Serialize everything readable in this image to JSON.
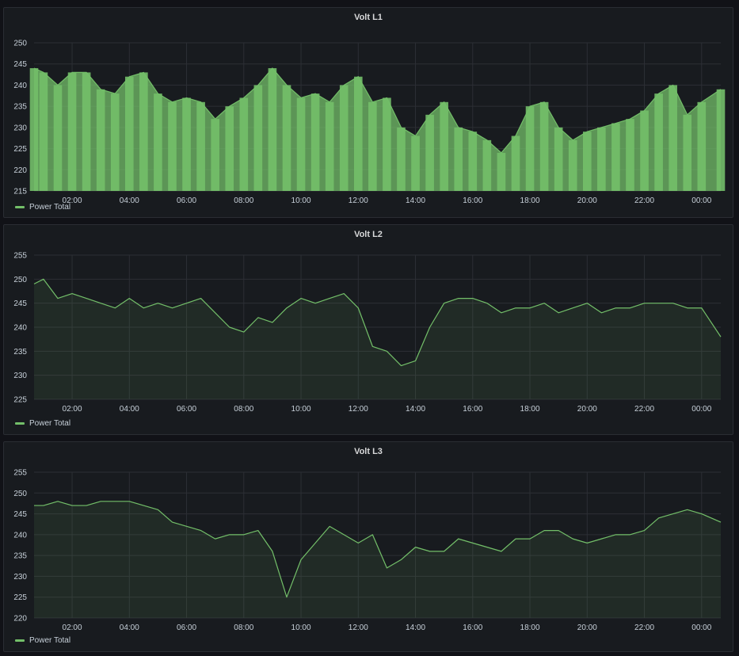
{
  "theme": {
    "series_color": "#73bf69"
  },
  "chart_data": [
    {
      "type": "bar",
      "title": "Volt L1",
      "ylim": [
        215,
        250
      ],
      "yticks": [
        215,
        220,
        225,
        230,
        235,
        240,
        245,
        250
      ],
      "xticks": [
        "02:00",
        "04:00",
        "06:00",
        "08:00",
        "10:00",
        "12:00",
        "14:00",
        "16:00",
        "18:00",
        "20:00",
        "22:00",
        "00:00"
      ],
      "xrange_hours": [
        0.67,
        24.67
      ],
      "grid": true,
      "legend": "bottom-left",
      "series": [
        {
          "name": "Power Total",
          "x": [
            0.67,
            1,
            1.5,
            2,
            2.5,
            3,
            3.5,
            4,
            4.5,
            5,
            5.5,
            6,
            6.5,
            7,
            7.5,
            8,
            8.5,
            9,
            9.5,
            10,
            10.5,
            11,
            11.5,
            12,
            12.5,
            13,
            13.5,
            14,
            14.5,
            15,
            15.5,
            16,
            16.5,
            17,
            17.5,
            18,
            18.5,
            19,
            19.5,
            20,
            20.5,
            21,
            21.5,
            22,
            22.5,
            23,
            23.5,
            24,
            24.67
          ],
          "values": [
            244,
            243,
            240,
            243,
            243,
            239,
            238,
            242,
            243,
            238,
            236,
            237,
            236,
            232,
            235,
            237,
            240,
            244,
            240,
            237,
            238,
            236,
            240,
            242,
            236,
            237,
            230,
            228,
            233,
            236,
            230,
            229,
            227,
            224,
            228,
            235,
            236,
            230,
            227,
            229,
            230,
            231,
            232,
            234,
            238,
            240,
            233,
            236,
            239
          ]
        }
      ]
    },
    {
      "type": "area",
      "title": "Volt L2",
      "ylim": [
        225,
        255
      ],
      "yticks": [
        225,
        230,
        235,
        240,
        245,
        250,
        255
      ],
      "xticks": [
        "02:00",
        "04:00",
        "06:00",
        "08:00",
        "10:00",
        "12:00",
        "14:00",
        "16:00",
        "18:00",
        "20:00",
        "22:00",
        "00:00"
      ],
      "xrange_hours": [
        0.67,
        24.67
      ],
      "grid": true,
      "legend": "bottom-left",
      "series": [
        {
          "name": "Power Total",
          "x": [
            0.67,
            1,
            1.5,
            2,
            2.5,
            3,
            3.5,
            4,
            4.5,
            5,
            5.5,
            6,
            6.5,
            7,
            7.5,
            8,
            8.5,
            9,
            9.5,
            10,
            10.5,
            11,
            11.5,
            12,
            12.5,
            13,
            13.5,
            14,
            14.5,
            15,
            15.5,
            16,
            16.5,
            17,
            17.5,
            18,
            18.5,
            19,
            19.5,
            20,
            20.5,
            21,
            21.5,
            22,
            22.5,
            23,
            23.5,
            24,
            24.67
          ],
          "values": [
            249,
            250,
            246,
            247,
            246,
            245,
            244,
            246,
            244,
            245,
            244,
            245,
            246,
            243,
            240,
            239,
            242,
            241,
            244,
            246,
            245,
            246,
            247,
            244,
            236,
            235,
            232,
            233,
            240,
            245,
            246,
            246,
            245,
            243,
            244,
            244,
            245,
            243,
            244,
            245,
            243,
            244,
            244,
            245,
            245,
            245,
            244,
            244,
            238
          ]
        }
      ]
    },
    {
      "type": "area",
      "title": "Volt L3",
      "ylim": [
        220,
        255
      ],
      "yticks": [
        220,
        225,
        230,
        235,
        240,
        245,
        250,
        255
      ],
      "xticks": [
        "02:00",
        "04:00",
        "06:00",
        "08:00",
        "10:00",
        "12:00",
        "14:00",
        "16:00",
        "18:00",
        "20:00",
        "22:00",
        "00:00"
      ],
      "xrange_hours": [
        0.67,
        24.67
      ],
      "grid": true,
      "legend": "bottom-left",
      "series": [
        {
          "name": "Power Total",
          "x": [
            0.67,
            1,
            1.5,
            2,
            2.5,
            3,
            3.5,
            4,
            4.5,
            5,
            5.5,
            6,
            6.5,
            7,
            7.5,
            8,
            8.5,
            9,
            9.5,
            10,
            10.5,
            11,
            11.5,
            12,
            12.5,
            13,
            13.5,
            14,
            14.5,
            15,
            15.5,
            16,
            16.5,
            17,
            17.5,
            18,
            18.5,
            19,
            19.5,
            20,
            20.5,
            21,
            21.5,
            22,
            22.5,
            23,
            23.5,
            24,
            24.67
          ],
          "values": [
            247,
            247,
            248,
            247,
            247,
            248,
            248,
            248,
            247,
            246,
            243,
            242,
            241,
            239,
            240,
            240,
            241,
            236,
            225,
            234,
            238,
            242,
            240,
            238,
            240,
            232,
            234,
            237,
            236,
            236,
            239,
            238,
            237,
            236,
            239,
            239,
            241,
            241,
            239,
            238,
            239,
            240,
            240,
            241,
            244,
            245,
            246,
            245,
            243
          ]
        }
      ]
    }
  ]
}
